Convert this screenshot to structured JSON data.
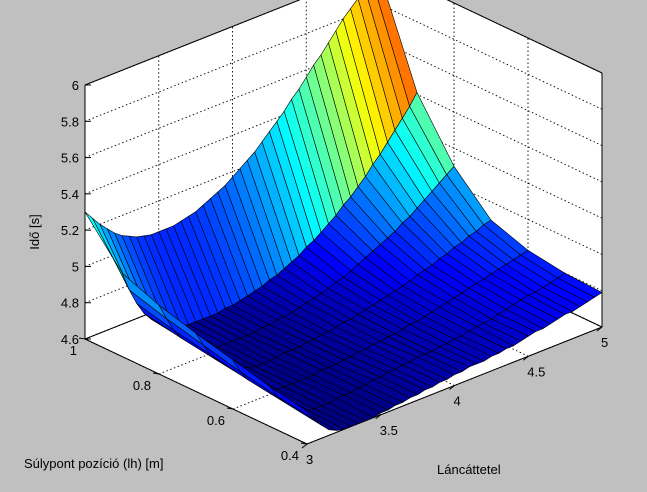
{
  "chart_data": {
    "type": "surface",
    "xlabel": "Láncáttetel",
    "ylabel": "Súlypont pozíció (lh) [m]",
    "zlabel": "Idő [s]",
    "xlim": [
      3,
      5
    ],
    "ylim": [
      0.4,
      1
    ],
    "zlim": [
      4.6,
      6
    ],
    "x_ticks": [
      "3",
      "3.5",
      "4",
      "4.5",
      "5"
    ],
    "y_ticks": [
      "0.4",
      "0.6",
      "0.8",
      "1"
    ],
    "z_ticks": [
      "4.6",
      "4.8",
      "5",
      "5.2",
      "5.4",
      "5.6",
      "5.8",
      "6"
    ],
    "grid": true,
    "colormap": "jet",
    "background_color": "#c0c0c0",
    "axes_color": "#ffffff",
    "x_step": 0.05,
    "y_step": 0.1,
    "z": [
      [
        4.78,
        4.72,
        4.67,
        4.63,
        4.61,
        4.6,
        4.6,
        4.6,
        4.6,
        4.6,
        4.61,
        4.61,
        4.62,
        4.62,
        4.63,
        4.63,
        4.64,
        4.64,
        4.65,
        4.65,
        4.66,
        4.66,
        4.67,
        4.67,
        4.67,
        4.68,
        4.68,
        4.69,
        4.69,
        4.7,
        4.71,
        4.72,
        4.72,
        4.73,
        4.74,
        4.75,
        4.75,
        4.76,
        4.77,
        4.78,
        4.79
      ],
      [
        4.82,
        4.75,
        4.7,
        4.66,
        4.63,
        4.61,
        4.6,
        4.6,
        4.6,
        4.61,
        4.61,
        4.61,
        4.62,
        4.62,
        4.63,
        4.63,
        4.64,
        4.64,
        4.65,
        4.65,
        4.66,
        4.66,
        4.66,
        4.67,
        4.67,
        4.68,
        4.68,
        4.69,
        4.7,
        4.7,
        4.71,
        4.72,
        4.73,
        4.74,
        4.75,
        4.76,
        4.76,
        4.77,
        4.78,
        4.79,
        4.8
      ],
      [
        4.87,
        4.79,
        4.73,
        4.69,
        4.65,
        4.63,
        4.61,
        4.61,
        4.61,
        4.61,
        4.61,
        4.61,
        4.62,
        4.62,
        4.62,
        4.63,
        4.63,
        4.64,
        4.64,
        4.65,
        4.65,
        4.66,
        4.66,
        4.67,
        4.68,
        4.68,
        4.69,
        4.7,
        4.71,
        4.72,
        4.73,
        4.74,
        4.75,
        4.76,
        4.77,
        4.78,
        4.79,
        4.8,
        4.81,
        4.82,
        4.83
      ],
      [
        4.92,
        4.84,
        4.77,
        4.72,
        4.68,
        4.65,
        4.63,
        4.62,
        4.61,
        4.61,
        4.61,
        4.61,
        4.62,
        4.62,
        4.62,
        4.63,
        4.63,
        4.64,
        4.64,
        4.65,
        4.66,
        4.66,
        4.67,
        4.68,
        4.69,
        4.7,
        4.71,
        4.72,
        4.73,
        4.74,
        4.76,
        4.77,
        4.78,
        4.8,
        4.81,
        4.83,
        4.84,
        4.86,
        4.87,
        4.89,
        4.9
      ],
      [
        4.98,
        4.89,
        4.81,
        4.75,
        4.71,
        4.67,
        4.65,
        4.63,
        4.62,
        4.62,
        4.62,
        4.62,
        4.62,
        4.62,
        4.63,
        4.63,
        4.64,
        4.64,
        4.65,
        4.66,
        4.67,
        4.68,
        4.69,
        4.7,
        4.72,
        4.73,
        4.75,
        4.77,
        4.79,
        4.81,
        4.83,
        4.85,
        4.87,
        4.9,
        4.92,
        4.95,
        4.98,
        5.01,
        5.04,
        5.07,
        5.1
      ],
      [
        5.06,
        4.95,
        4.86,
        4.79,
        4.74,
        4.7,
        4.67,
        4.65,
        4.64,
        4.63,
        4.63,
        4.63,
        4.63,
        4.63,
        4.64,
        4.64,
        4.65,
        4.66,
        4.67,
        4.68,
        4.7,
        4.71,
        4.73,
        4.75,
        4.77,
        4.8,
        4.82,
        4.85,
        4.88,
        4.91,
        4.95,
        4.98,
        5.02,
        5.06,
        5.11,
        5.15,
        5.2,
        5.25,
        5.3,
        5.35,
        5.41
      ],
      [
        5.3,
        5.25,
        5.2,
        5.16,
        5.12,
        5.09,
        5.07,
        5.05,
        5.04,
        5.03,
        5.03,
        5.03,
        5.03,
        5.04,
        5.05,
        5.06,
        5.08,
        5.1,
        5.12,
        5.14,
        5.17,
        5.2,
        5.23,
        5.26,
        5.3,
        5.34,
        5.38,
        5.42,
        5.47,
        5.51,
        5.56,
        5.61,
        5.65,
        5.7,
        5.75,
        5.8,
        5.84,
        5.88,
        5.91,
        5.94,
        5.96
      ]
    ]
  }
}
